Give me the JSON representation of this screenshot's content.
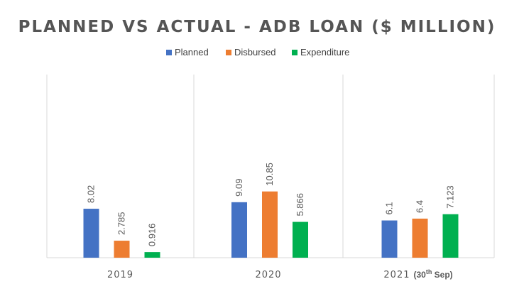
{
  "chart_data": {
    "type": "bar",
    "title": "PLANNED VS ACTUAL - ADB LOAN ($ MILLION)",
    "xlabel": "",
    "ylabel": "",
    "categories": [
      "2019",
      "2020",
      "2021"
    ],
    "category_notes": [
      "",
      "",
      "(30th Sep)"
    ],
    "series": [
      {
        "name": "Planned",
        "color": "#4472C4",
        "values": [
          8.02,
          9.09,
          6.1
        ],
        "labels": [
          "8.02",
          "9.09",
          "6.1"
        ]
      },
      {
        "name": "Disbursed",
        "color": "#ED7D31",
        "values": [
          2.785,
          10.85,
          6.4
        ],
        "labels": [
          "2.785",
          "10.85",
          "6.4"
        ]
      },
      {
        "name": "Expenditure",
        "color": "#00B050",
        "values": [
          0.916,
          5.866,
          7.123
        ],
        "labels": [
          "0.916",
          "5.866",
          "7.123"
        ]
      }
    ],
    "ylim": [
      0,
      30
    ],
    "grid": false,
    "legend_position": "top"
  }
}
